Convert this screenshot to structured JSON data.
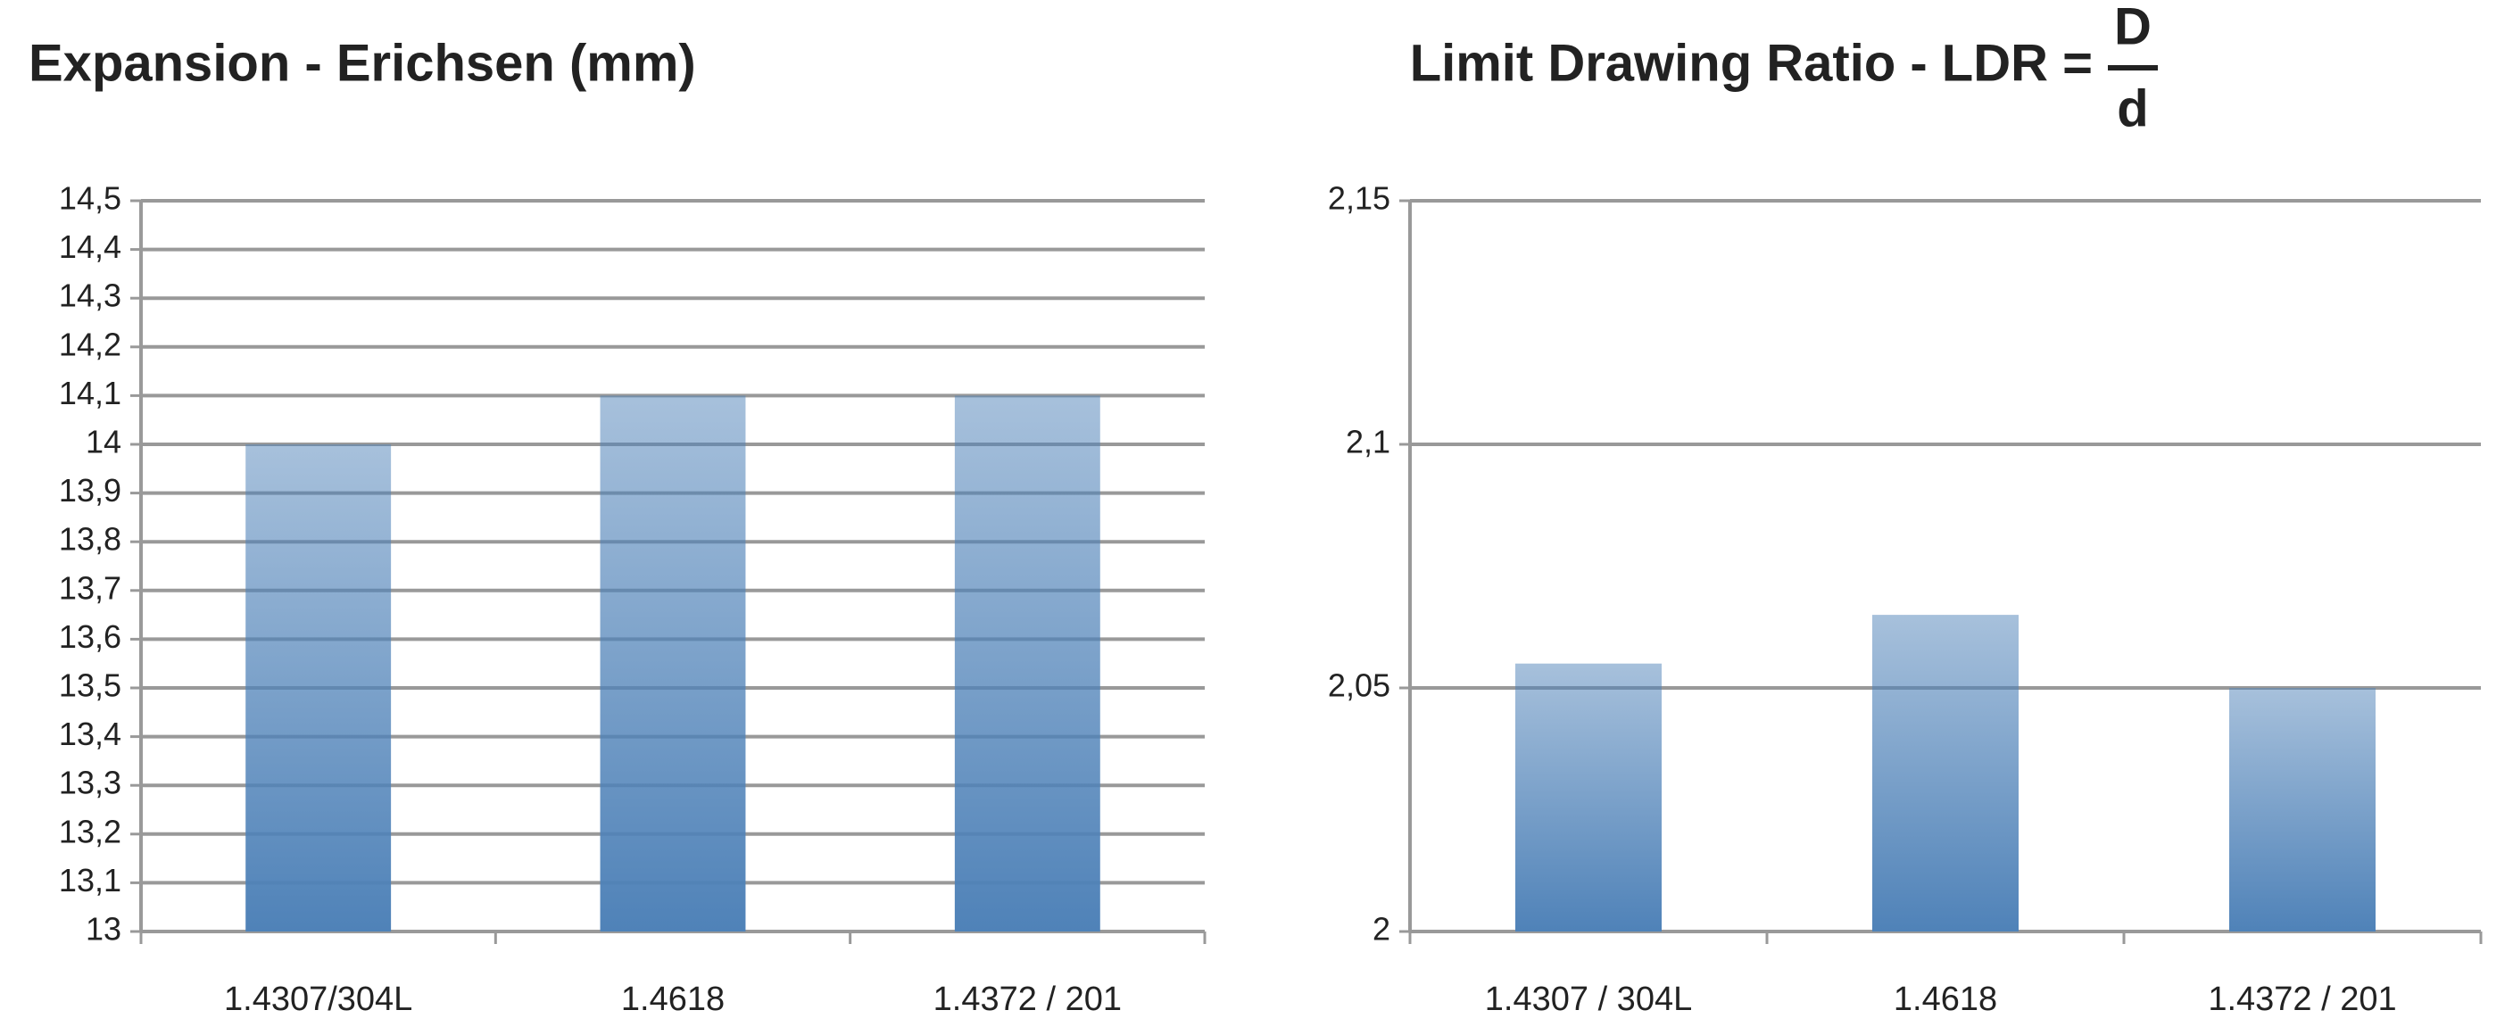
{
  "chart_data": [
    {
      "type": "bar",
      "title": "Expansion - Erichsen (mm)",
      "categories": [
        "1.4307/304L",
        "1.4618",
        "1.4372 / 201"
      ],
      "values": [
        14,
        14.1,
        14.1
      ],
      "color": "#4f82b8",
      "ylim": [
        13,
        14.5
      ],
      "yticks": [
        13,
        {
          "value": 13.1,
          "label": "13,1"
        },
        {
          "value": 13.2,
          "label": "13,2"
        },
        {
          "value": 13.3,
          "label": "13,3"
        },
        {
          "value": 13.4,
          "label": "13,4"
        },
        {
          "value": 13.5,
          "label": "13,5"
        },
        {
          "value": 13.6,
          "label": "13,6"
        },
        {
          "value": 13.7,
          "label": "13,7"
        },
        {
          "value": 13.8,
          "label": "13,8"
        },
        {
          "value": 13.9,
          "label": "13,9"
        },
        14,
        {
          "value": 14.1,
          "label": "14,1"
        },
        {
          "value": 14.2,
          "label": "14,2"
        },
        {
          "value": 14.3,
          "label": "14,3"
        },
        {
          "value": 14.4,
          "label": "14,4"
        },
        {
          "value": 14.5,
          "label": "14,5"
        }
      ],
      "grid": true
    },
    {
      "type": "bar",
      "title": "Limit Drawing Ratio  -  LDR =",
      "fraction_numerator": "D",
      "fraction_denominator": "d",
      "categories": [
        "1.4307 / 304L",
        "1.4618",
        "1.4372 / 201"
      ],
      "values": [
        2.055,
        2.065,
        2.05
      ],
      "color": "#4f82b8",
      "ylim": [
        2,
        2.15
      ],
      "yticks": [
        2,
        {
          "value": 2.05,
          "label": "2,05"
        },
        {
          "value": 2.1,
          "label": "2,1"
        },
        {
          "value": 2.15,
          "label": "2,15"
        }
      ],
      "grid": true
    }
  ]
}
